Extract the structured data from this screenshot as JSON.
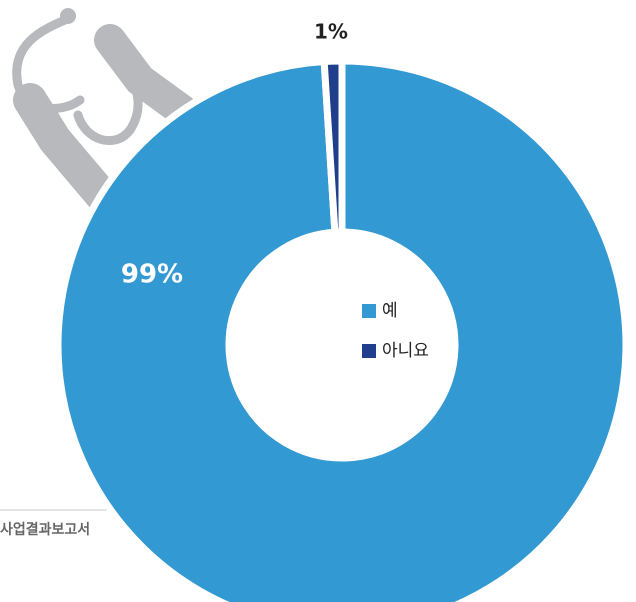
{
  "chart_data": {
    "type": "donut",
    "categories": [
      "예",
      "아니요"
    ],
    "values": [
      99,
      1
    ],
    "value_labels": [
      "99%",
      "1%"
    ],
    "colors": [
      "#3399d2",
      "#1f3f8c"
    ],
    "source": "사업결과보고서"
  }
}
